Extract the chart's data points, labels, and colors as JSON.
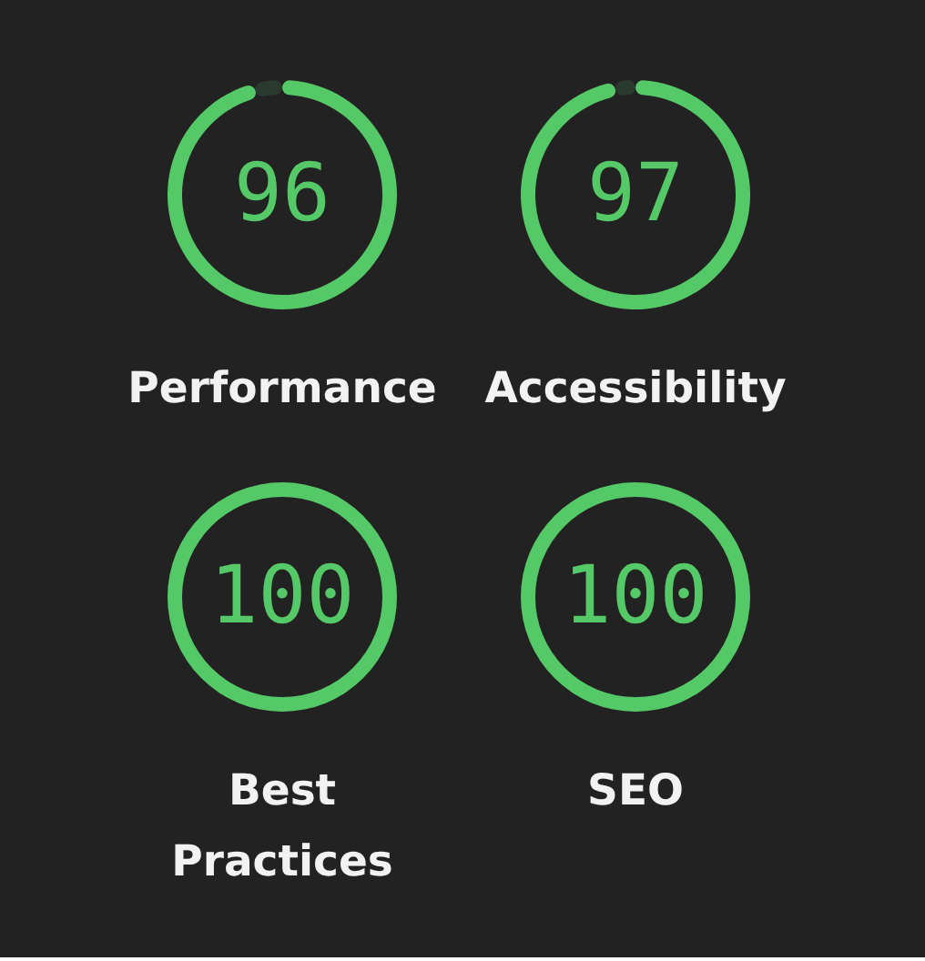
{
  "chart_data": [
    {
      "type": "donut",
      "title": "Performance",
      "categories": [
        null,
        null
      ],
      "values": [
        96,
        4
      ],
      "colors": [
        "#55c867",
        "#2b3a2e"
      ],
      "value_labels": [
        "96",
        null
      ]
    },
    {
      "type": "donut",
      "title": "Accessibility",
      "categories": [
        null,
        null
      ],
      "values": [
        97,
        3
      ],
      "colors": [
        "#55c867",
        "#2b3a2e"
      ],
      "value_labels": [
        "97",
        null
      ]
    },
    {
      "type": "donut",
      "title": "Best Practices",
      "categories": [
        null
      ],
      "values": [
        100
      ],
      "colors": [
        "#55c867"
      ],
      "value_labels": [
        "100"
      ]
    },
    {
      "type": "donut",
      "title": "SEO",
      "categories": [
        null
      ],
      "values": [
        100
      ],
      "colors": [
        "#55c867"
      ],
      "value_labels": [
        "100"
      ]
    }
  ]
}
